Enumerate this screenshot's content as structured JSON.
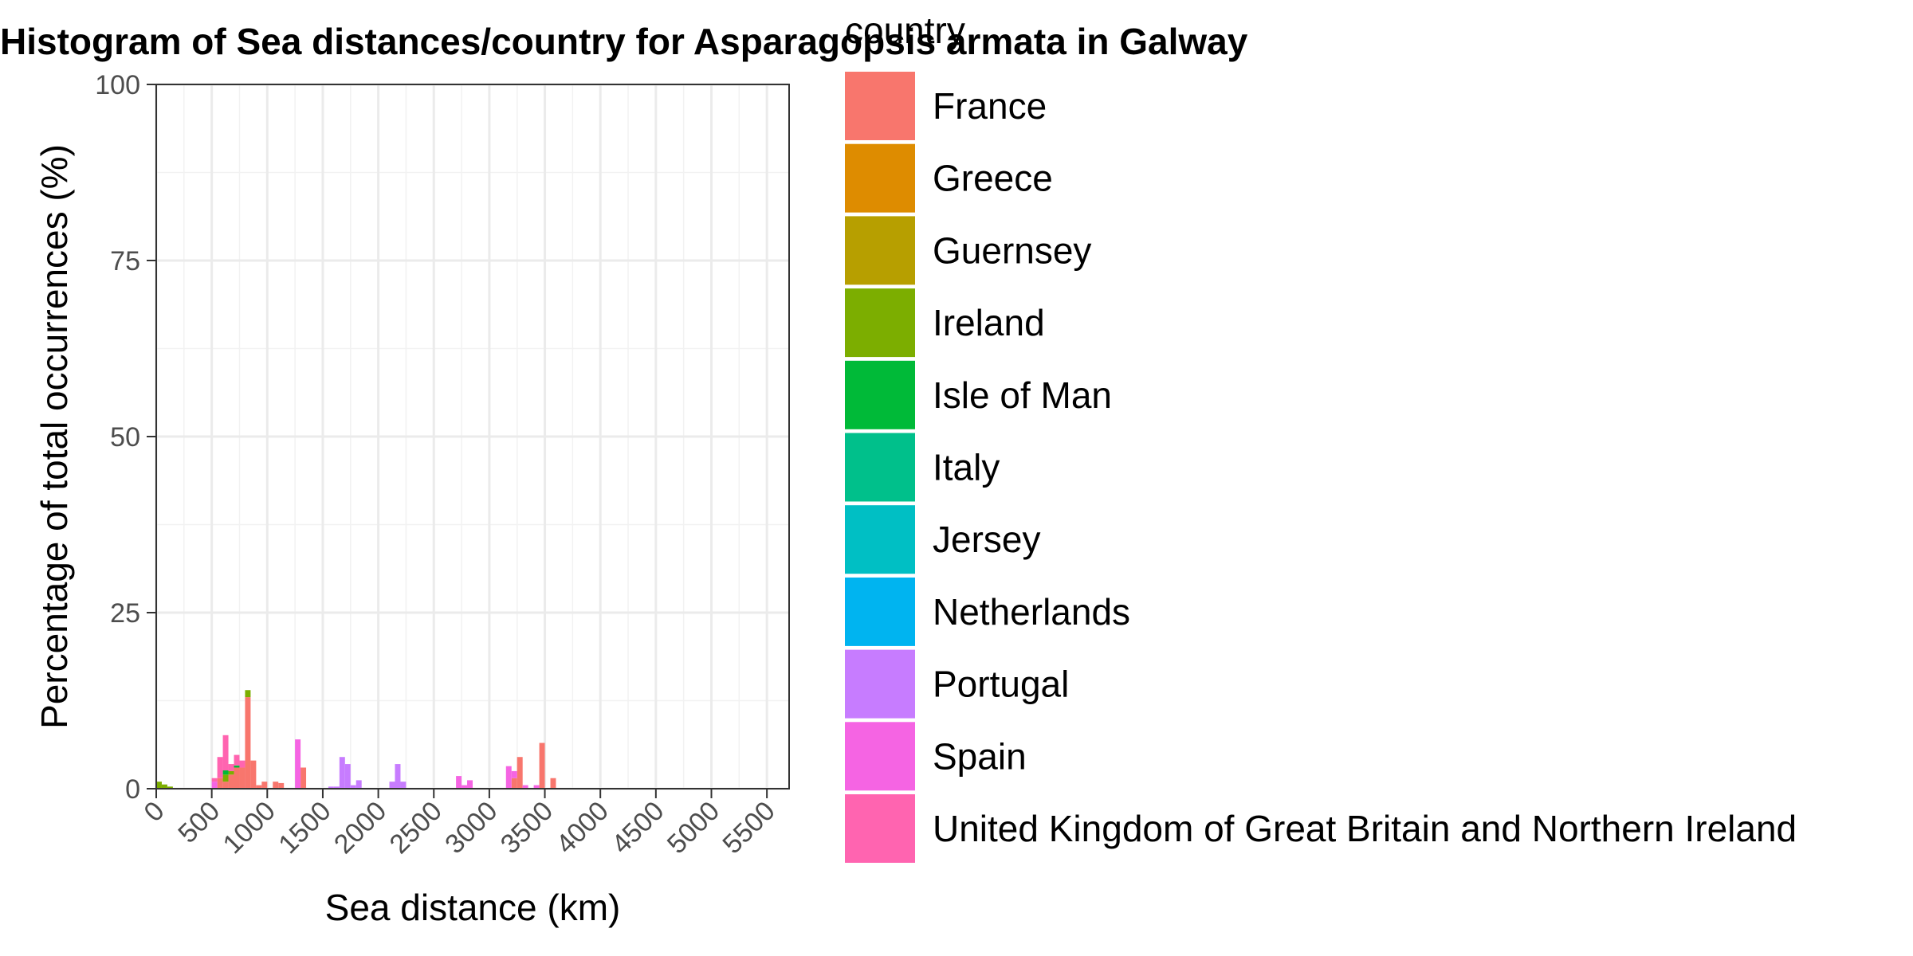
{
  "chart_data": {
    "type": "bar",
    "title": "Histogram of Sea distances/country for Asparagopsis armata in Galway",
    "xlabel": "Sea distance (km)",
    "ylabel": "Percentage of total occurrences (%)",
    "xlim": [
      0,
      5700
    ],
    "ylim": [
      0,
      100
    ],
    "x_ticks": [
      "0",
      "500",
      "1000",
      "1500",
      "2000",
      "2500",
      "3000",
      "3500",
      "4000",
      "4500",
      "5000",
      "5500"
    ],
    "y_ticks": [
      "0",
      "25",
      "50",
      "75",
      "100"
    ],
    "bin_width": 50,
    "stacked": true,
    "grid": true,
    "legend": {
      "title": "country",
      "position": "right"
    },
    "series": [
      {
        "name": "France",
        "color": "#F8766D",
        "bins": [
          [
            550,
            1.5
          ],
          [
            600,
            1.0
          ],
          [
            650,
            2.0
          ],
          [
            700,
            3.0
          ],
          [
            750,
            3.0
          ],
          [
            800,
            13.0
          ],
          [
            850,
            4.0
          ],
          [
            900,
            0.5
          ],
          [
            950,
            1.0
          ],
          [
            1050,
            1.0
          ],
          [
            1100,
            0.8
          ],
          [
            1300,
            3.0
          ],
          [
            3200,
            1.5
          ],
          [
            3250,
            4.5
          ],
          [
            3450,
            6.5
          ],
          [
            3550,
            1.5
          ]
        ]
      },
      {
        "name": "Greece",
        "color": "#DE8C00",
        "bins": []
      },
      {
        "name": "Guernsey",
        "color": "#B79F00",
        "bins": []
      },
      {
        "name": "Ireland",
        "color": "#7CAE00",
        "bins": [
          [
            0,
            1.0
          ],
          [
            50,
            0.6
          ],
          [
            100,
            0.3
          ],
          [
            600,
            1.0
          ],
          [
            650,
            0.5
          ],
          [
            800,
            1.0
          ]
        ]
      },
      {
        "name": "Isle of Man",
        "color": "#00BA38",
        "bins": [
          [
            600,
            0.6
          ],
          [
            700,
            0.3
          ]
        ]
      },
      {
        "name": "Italy",
        "color": "#00C08B",
        "bins": []
      },
      {
        "name": "Jersey",
        "color": "#00BFC4",
        "bins": []
      },
      {
        "name": "Netherlands",
        "color": "#00B4F0",
        "bins": []
      },
      {
        "name": "Portugal",
        "color": "#C77CFF",
        "bins": [
          [
            1550,
            0.3
          ],
          [
            1600,
            0.3
          ],
          [
            1650,
            4.5
          ],
          [
            1700,
            3.5
          ],
          [
            1750,
            0.5
          ],
          [
            1800,
            1.2
          ],
          [
            2100,
            1.0
          ],
          [
            2150,
            3.5
          ],
          [
            2200,
            1.0
          ]
        ]
      },
      {
        "name": "Spain",
        "color": "#F564E3",
        "bins": [
          [
            500,
            1.0
          ],
          [
            1250,
            7.0
          ],
          [
            2700,
            1.8
          ],
          [
            2750,
            0.5
          ],
          [
            2800,
            1.2
          ],
          [
            3150,
            3.2
          ],
          [
            3200,
            1.0
          ],
          [
            3300,
            0.5
          ],
          [
            3400,
            0.5
          ]
        ]
      },
      {
        "name": "United Kingdom of Great Britain and Northern Ireland",
        "color": "#FF64B0",
        "bins": [
          [
            500,
            0.5
          ],
          [
            550,
            3.0
          ],
          [
            600,
            5.0
          ],
          [
            650,
            1.0
          ],
          [
            700,
            1.5
          ],
          [
            750,
            1.0
          ]
        ]
      }
    ]
  }
}
